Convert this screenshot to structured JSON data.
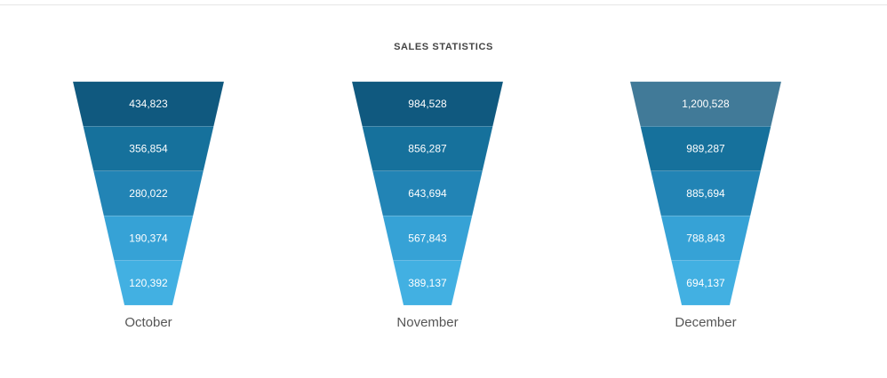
{
  "chart_data": {
    "type": "funnel",
    "title": "SALES STATISTICS",
    "funnels": [
      {
        "label": "October",
        "values": [
          "434,823",
          "356,854",
          "280,022",
          "190,374",
          "120,392"
        ]
      },
      {
        "label": "November",
        "values": [
          "984,528",
          "856,287",
          "643,694",
          "567,843",
          "389,137"
        ]
      },
      {
        "label": "December",
        "values": [
          "1,200,528",
          "989,287",
          "885,694",
          "788,843",
          "694,137"
        ]
      }
    ],
    "colors": {
      "October": [
        "#10597f",
        "#16719c",
        "#2284b5",
        "#36a2d6",
        "#42b0e2"
      ],
      "November": [
        "#10597f",
        "#16719c",
        "#2284b5",
        "#36a2d6",
        "#42b0e2"
      ],
      "December": [
        "#417a98",
        "#16719c",
        "#2284b5",
        "#36a2d6",
        "#42b0e2"
      ]
    },
    "value_label_color": "#ffffff",
    "month_label_color": "#555555"
  }
}
